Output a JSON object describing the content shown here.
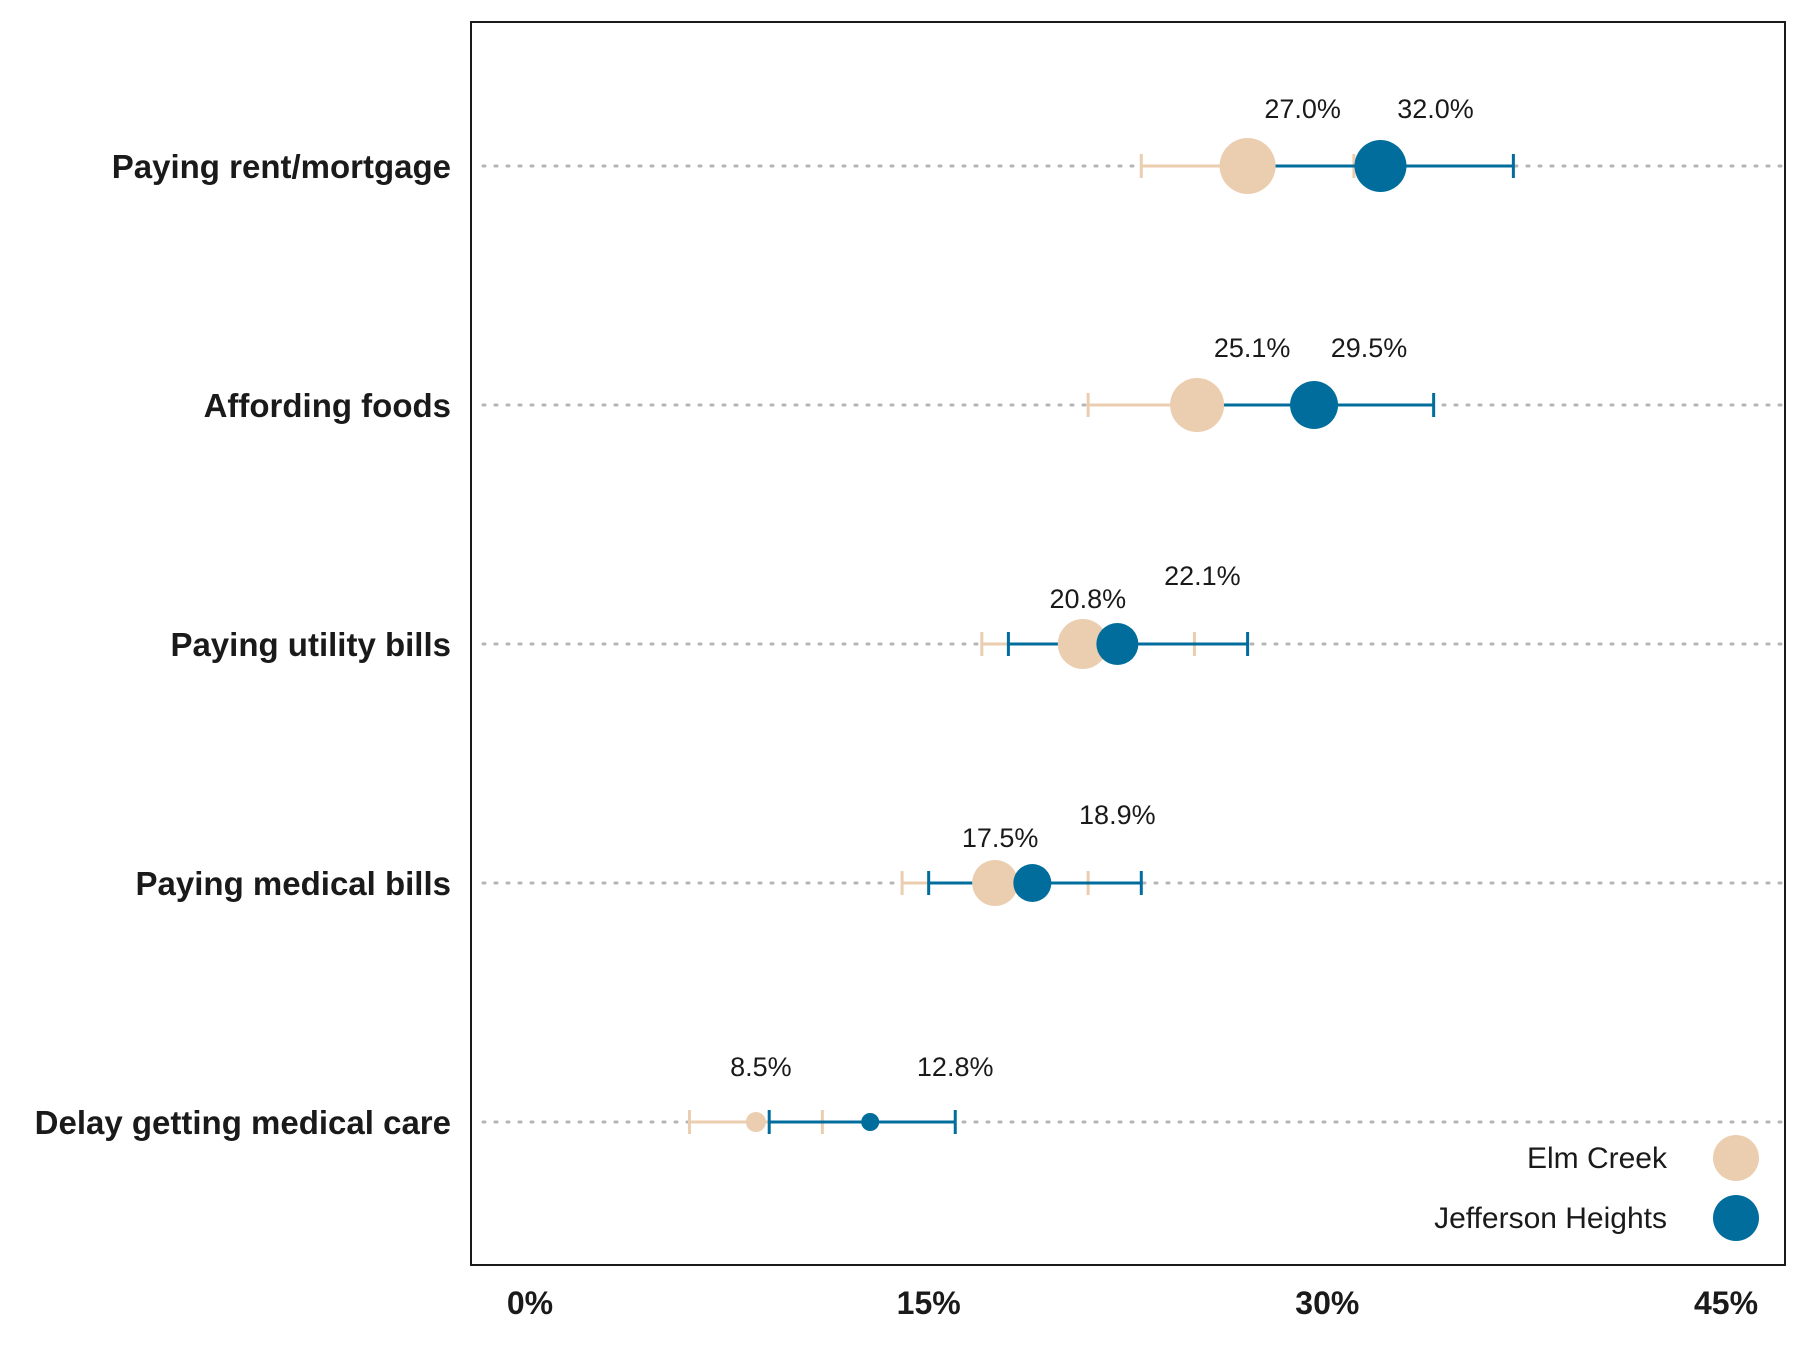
{
  "chart_data": {
    "type": "scatter",
    "subtype": "dot-plot-with-error-bars",
    "categories": [
      "Paying rent/mortgage",
      "Affording foods",
      "Paying utility bills",
      "Paying medical bills",
      "Delay getting medical care"
    ],
    "xlim": [
      0,
      45
    ],
    "x_ticks": [
      0,
      15,
      30,
      45
    ],
    "x_tick_labels": [
      "0%",
      "15%",
      "30%",
      "45%"
    ],
    "xlabel": "",
    "ylabel": "",
    "grid": "dotted horizontal guides per category",
    "legend_position": "bottom-right",
    "series": [
      {
        "name": "Elm Creek",
        "color": "#EBCDB0",
        "values": [
          27.0,
          25.1,
          20.8,
          17.5,
          8.5
        ],
        "labels": [
          "27.0%",
          "25.1%",
          "20.8%",
          "17.5%",
          "8.5%"
        ],
        "ci_low": [
          23.0,
          21.0,
          17.0,
          14.0,
          6.0
        ],
        "ci_high": [
          31.0,
          29.0,
          25.0,
          21.0,
          11.0
        ],
        "size": [
          1.0,
          0.95,
          0.85,
          0.75,
          0.25
        ]
      },
      {
        "name": "Jefferson Heights",
        "color": "#006D9C",
        "values": [
          32.0,
          29.5,
          22.1,
          18.9,
          12.8
        ],
        "labels": [
          "32.0%",
          "29.5%",
          "22.1%",
          "18.9%",
          "12.8%"
        ],
        "ci_low": [
          27.0,
          25.0,
          18.0,
          15.0,
          9.0
        ],
        "ci_high": [
          37.0,
          34.0,
          27.0,
          23.0,
          16.0
        ],
        "size": [
          0.9,
          0.8,
          0.65,
          0.55,
          0.2
        ]
      }
    ],
    "legend": [
      "Elm Creek",
      "Jefferson Heights"
    ]
  }
}
